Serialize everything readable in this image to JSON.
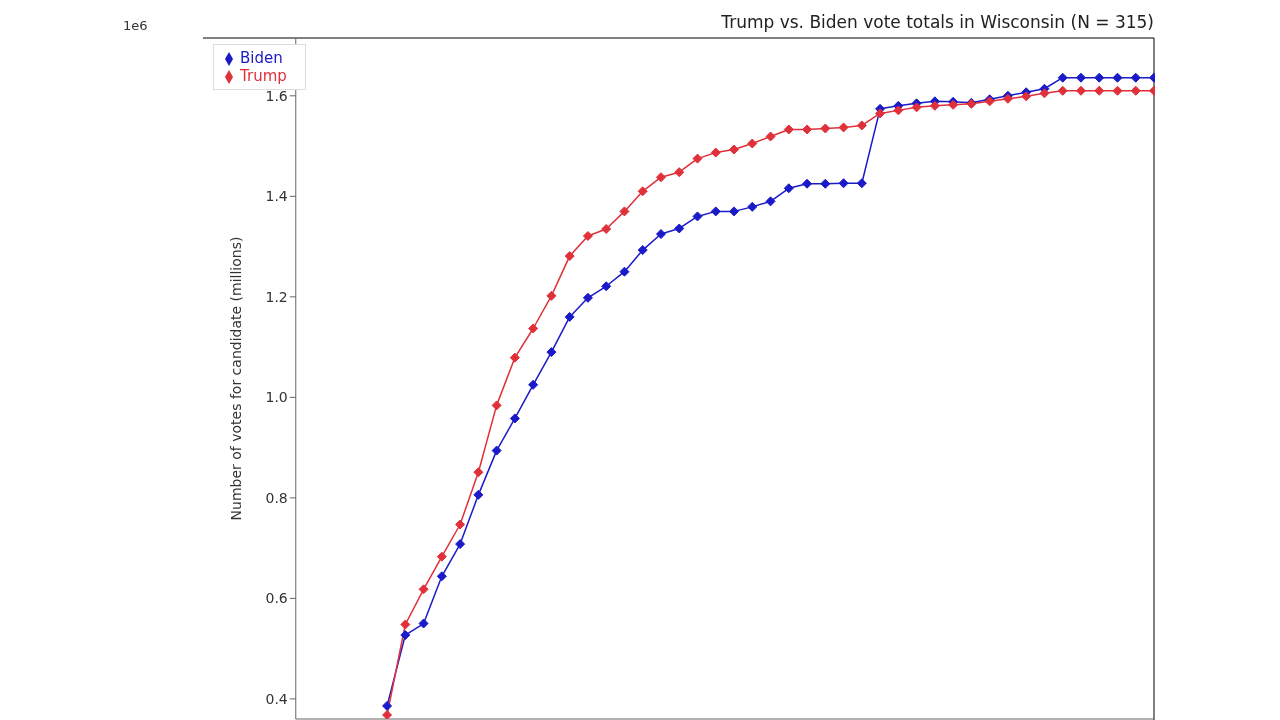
{
  "chart_data": {
    "type": "line",
    "title": "Trump vs. Biden vote totals in Wisconsin (N = 315)",
    "ylabel": "Number of votes for candidate (millions)",
    "annotations": [
      "1e6"
    ],
    "categories": [
      null,
      null,
      null,
      null,
      null,
      null,
      null,
      null,
      null,
      null,
      null,
      null,
      null,
      null,
      null,
      null,
      null,
      null,
      null,
      null,
      null,
      null,
      null,
      null,
      null,
      null,
      null,
      null,
      null,
      null,
      null,
      null,
      null,
      null,
      null,
      null,
      null,
      null,
      null,
      null,
      null,
      null,
      null,
      null,
      null,
      null,
      null,
      null
    ],
    "series": [
      {
        "name": "Biden",
        "color": "#1a1ac8",
        "values": [
          null,
          null,
          null,
          null,
          null,
          0.386,
          0.527,
          0.55,
          0.644,
          0.708,
          0.806,
          0.894,
          0.958,
          1.025,
          1.09,
          1.16,
          1.198,
          1.221,
          1.25,
          1.293,
          1.325,
          1.336,
          1.36,
          1.37,
          1.37,
          1.379,
          1.39,
          1.416,
          1.425,
          1.425,
          1.426,
          1.426,
          1.574,
          1.58,
          1.585,
          1.589,
          1.588,
          1.586,
          1.593,
          1.6,
          1.607,
          1.614,
          1.636,
          1.636,
          1.636,
          1.636,
          1.636,
          1.636
        ]
      },
      {
        "name": "Trump",
        "color": "#e0303a",
        "values": [
          null,
          null,
          null,
          null,
          null,
          0.368,
          0.548,
          0.618,
          0.683,
          0.747,
          0.851,
          0.984,
          1.079,
          1.137,
          1.202,
          1.281,
          1.321,
          1.335,
          1.37,
          1.41,
          1.438,
          1.448,
          1.475,
          1.487,
          1.493,
          1.505,
          1.519,
          1.533,
          1.533,
          1.535,
          1.537,
          1.541,
          1.565,
          1.571,
          1.577,
          1.58,
          1.582,
          1.584,
          1.589,
          1.594,
          1.599,
          1.605,
          1.61,
          1.61,
          1.61,
          1.61,
          1.61,
          1.61
        ]
      }
    ],
    "ylim": [
      0.36,
      1.715
    ],
    "yticks": [
      0.4,
      0.6,
      0.8,
      {
        "value": 1,
        "label": "1.0"
      },
      1.2,
      1.4,
      1.6
    ],
    "tick_labels": "y",
    "grid": false,
    "legend": "top left",
    "marker": "diamond",
    "line_style": "solid"
  }
}
